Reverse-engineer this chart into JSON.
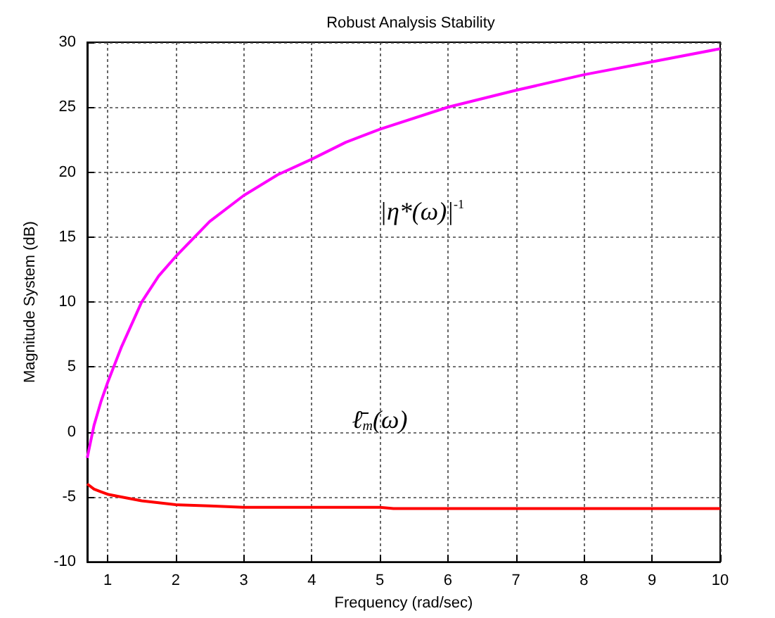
{
  "chart_data": {
    "type": "line",
    "title": "Robust Analysis Stability",
    "xlabel": "Frequency (rad/sec)",
    "ylabel": "Magnitude System (dB)",
    "xlim": [
      0.7,
      10
    ],
    "xticks": [
      1,
      2,
      3,
      4,
      5,
      6,
      7,
      8,
      9,
      10
    ],
    "ylim": [
      -10,
      30
    ],
    "yticks": [
      -10,
      -5,
      0,
      5,
      10,
      15,
      20,
      25,
      30
    ],
    "grid": true,
    "marker": "none",
    "line_style": "solid",
    "series": [
      {
        "color": "#ff00ff",
        "x": [
          0.7,
          0.8,
          0.9,
          1,
          1.2,
          1.5,
          1.75,
          2,
          2.5,
          3,
          3.5,
          4,
          4.5,
          5,
          6,
          7,
          8,
          9,
          10
        ],
        "values": [
          -2,
          0.5,
          2.3,
          3.8,
          6.5,
          10,
          12,
          13.5,
          16.2,
          18.2,
          19.8,
          21,
          22.3,
          23.3,
          25,
          26.3,
          27.5,
          28.5,
          29.5
        ]
      },
      {
        "color": "#ff0000",
        "x": [
          0.7,
          0.8,
          0.9,
          1,
          1.2,
          1.5,
          2,
          2.5,
          3,
          4,
          5,
          5.2,
          6,
          8,
          10
        ],
        "values": [
          -4,
          -4.4,
          -4.6,
          -4.8,
          -5,
          -5.3,
          -5.6,
          -5.7,
          -5.8,
          -5.8,
          -5.8,
          -5.9,
          -5.9,
          -5.9,
          -5.9
        ]
      }
    ],
    "annotations": [
      "|η*(ω)|$^{-1}$",
      "ℓ̄$_{m}$(ω)"
    ]
  }
}
